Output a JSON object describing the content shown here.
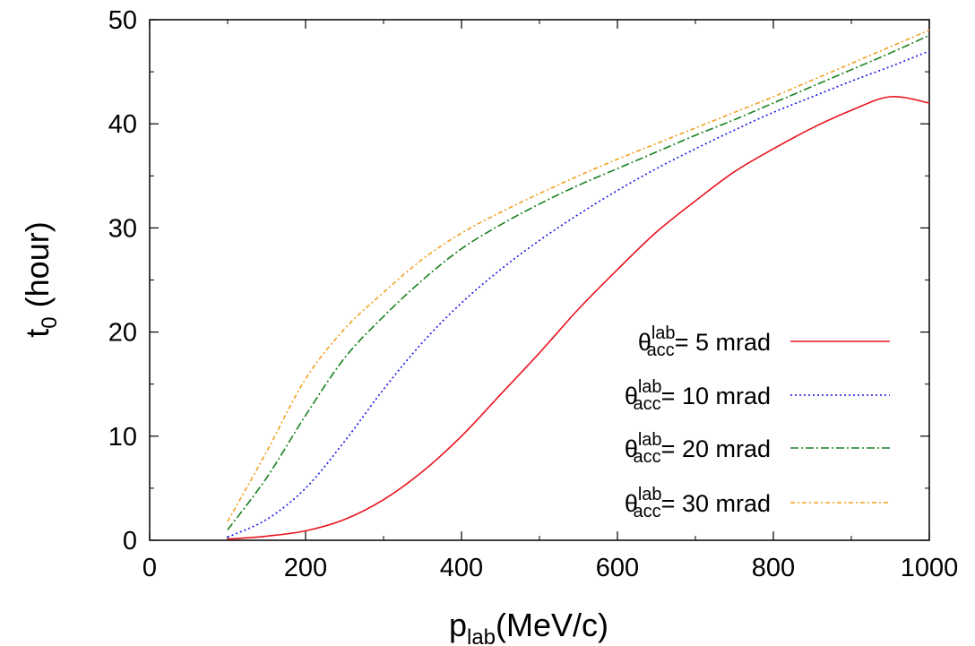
{
  "chart_data": {
    "type": "line",
    "xlabel": {
      "main": "p",
      "sub": "lab",
      "rest": "(MeV/c)"
    },
    "ylabel": {
      "main": "t",
      "sub": "0",
      "rest": " (hour)"
    },
    "xlim": [
      0,
      1000
    ],
    "ylim": [
      0,
      50
    ],
    "x_ticks": [
      0,
      200,
      400,
      600,
      800,
      1000
    ],
    "y_ticks": [
      0,
      10,
      20,
      30,
      40,
      50
    ],
    "x_tick_labels": [
      "0",
      "200",
      "400",
      "600",
      "800",
      "1000"
    ],
    "y_tick_labels": [
      "0",
      "10",
      "20",
      "30",
      "40",
      "50"
    ],
    "grid": false,
    "legend_position": "lower-right",
    "legend_symbol": "θ",
    "legend_sub": "acc",
    "legend_sup": "lab",
    "x": [
      100,
      150,
      200,
      250,
      300,
      350,
      400,
      450,
      500,
      550,
      600,
      650,
      700,
      750,
      800,
      850,
      900,
      950,
      1000
    ],
    "series": [
      {
        "name": "= 5 mrad",
        "color": "#e8141e",
        "dash": "",
        "values": [
          0.1,
          0.4,
          0.9,
          2.0,
          3.9,
          6.6,
          10.0,
          14.0,
          18.0,
          22.2,
          26.0,
          29.6,
          32.6,
          35.4,
          37.6,
          39.6,
          41.3,
          42.6,
          42.0
        ]
      },
      {
        "name": "= 10 mrad",
        "color": "#1414e6",
        "dash": "2,3",
        "values": [
          0.3,
          2.0,
          5.0,
          9.5,
          14.5,
          19.0,
          22.8,
          26.0,
          28.8,
          31.3,
          33.6,
          35.7,
          37.6,
          39.4,
          41.1,
          42.6,
          44.1,
          45.5,
          47.0
        ]
      },
      {
        "name": "= 20 mrad",
        "color": "#18801e",
        "dash": "9,3,2,3",
        "values": [
          1.0,
          6.0,
          12.0,
          17.5,
          21.5,
          25.0,
          28.0,
          30.3,
          32.3,
          34.1,
          35.7,
          37.3,
          38.9,
          40.4,
          42.0,
          43.6,
          45.2,
          46.8,
          48.5
        ]
      },
      {
        "name": "= 30 mrad",
        "color": "#f0a020",
        "dash": "5,3,2,3",
        "values": [
          1.8,
          8.5,
          15.5,
          20.3,
          23.8,
          27.0,
          29.5,
          31.5,
          33.3,
          35.0,
          36.6,
          38.1,
          39.6,
          41.1,
          42.6,
          44.2,
          45.8,
          47.4,
          49.0
        ]
      }
    ]
  }
}
